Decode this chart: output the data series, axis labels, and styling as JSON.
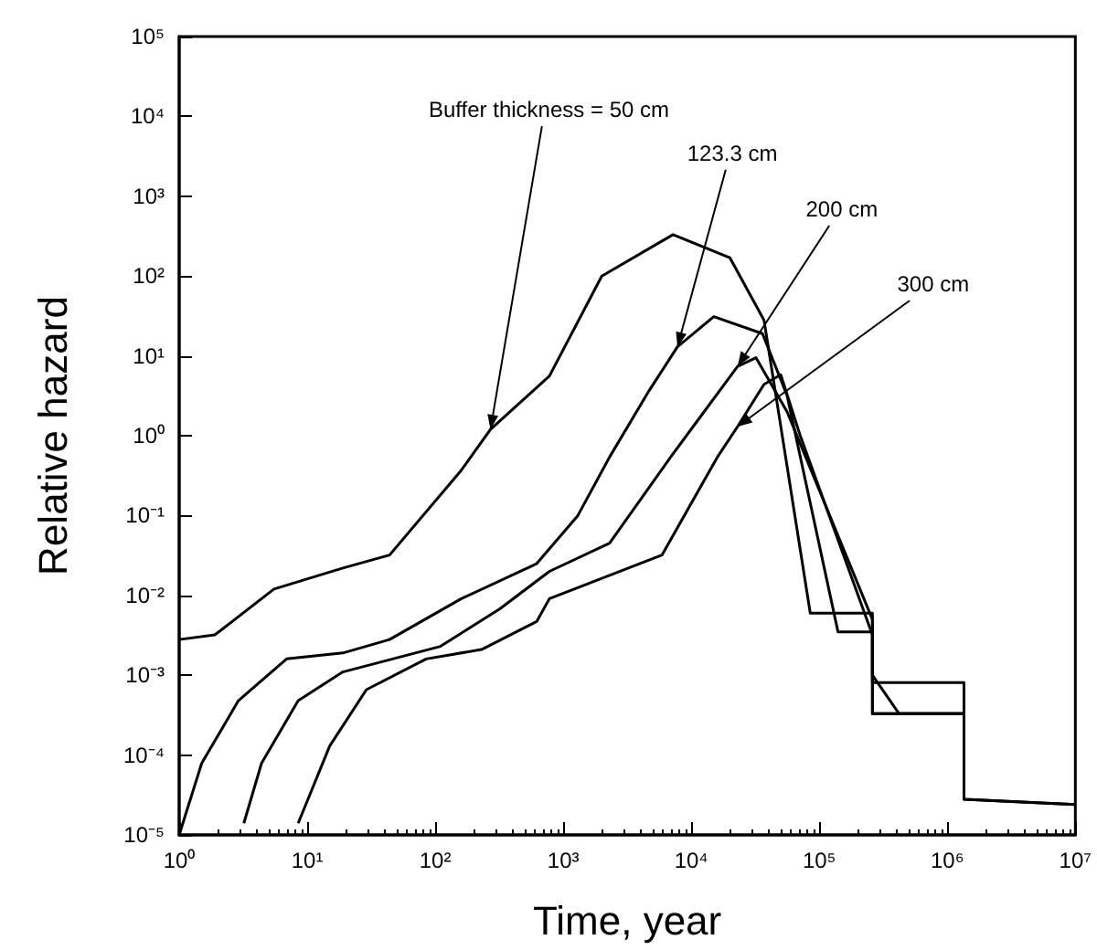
{
  "chart_data": {
    "type": "line",
    "xlabel": "Time, year",
    "ylabel": "Relative hazard",
    "log": "xy",
    "grid": false,
    "marker": "none",
    "line_style": "solid",
    "xlim": [
      1,
      10000000
    ],
    "ylim": [
      1e-05,
      100000
    ],
    "xticks": [
      {
        "value": 1,
        "label": "10⁰"
      },
      {
        "value": 10,
        "label": "10¹"
      },
      {
        "value": 100,
        "label": "10²"
      },
      {
        "value": 1000,
        "label": "10³"
      },
      {
        "value": 10000,
        "label": "10⁴"
      },
      {
        "value": 100000,
        "label": "10⁵"
      },
      {
        "value": 1000000,
        "label": "10⁶"
      },
      {
        "value": 10000000,
        "label": "10⁷"
      }
    ],
    "yticks": [
      {
        "value": 1e-05,
        "label": "10⁻⁵"
      },
      {
        "value": 0.0001,
        "label": "10⁻⁴"
      },
      {
        "value": 0.001,
        "label": "10⁻³"
      },
      {
        "value": 0.01,
        "label": "10⁻²"
      },
      {
        "value": 0.1,
        "label": "10⁻¹"
      },
      {
        "value": 1,
        "label": "10⁰"
      },
      {
        "value": 10,
        "label": "10¹"
      },
      {
        "value": 100,
        "label": "10²"
      },
      {
        "value": 1000,
        "label": "10³"
      },
      {
        "value": 10000,
        "label": "10⁴"
      },
      {
        "value": 100000,
        "label": "10⁵"
      }
    ],
    "series": [
      {
        "color": "#000000",
        "x": [
          1,
          1.9,
          5.5,
          19,
          44,
          160,
          270,
          780,
          2000,
          7200,
          20000,
          37000,
          85000,
          260000,
          260000,
          1350000,
          1350000,
          10000000
        ],
        "values": [
          0.0028,
          0.0032,
          0.012,
          0.022,
          0.032,
          0.37,
          1.2,
          5.6,
          100,
          330,
          170,
          28,
          0.006,
          0.006,
          0.00033,
          0.00033,
          2.8e-05,
          2.4e-05
        ]
      },
      {
        "color": "#000000",
        "x": [
          1,
          1.5,
          2.9,
          6.9,
          19,
          44,
          160,
          620,
          1300,
          2300,
          4700,
          7800,
          15000,
          36000,
          56000,
          140000,
          260000,
          260000,
          420000,
          1350000,
          1350000,
          10000000
        ],
        "values": [
          1e-05,
          7.9e-05,
          0.00048,
          0.0016,
          0.0019,
          0.0028,
          0.0091,
          0.025,
          0.1,
          0.54,
          3.7,
          13,
          31,
          19,
          3.2,
          0.0035,
          0.0035,
          0.001,
          0.00033,
          0.00033,
          2.8e-05,
          2.4e-05
        ]
      },
      {
        "color": "#000000",
        "x": [
          3.2,
          4.4,
          8.5,
          19,
          110,
          320,
          780,
          2300,
          6900,
          23000,
          32000,
          56000,
          260000,
          260000,
          1350000,
          1350000
        ],
        "values": [
          1.4e-05,
          7.9e-05,
          0.00048,
          0.0011,
          0.0023,
          0.0068,
          0.02,
          0.045,
          0.54,
          7.4,
          9.5,
          2,
          0.005,
          0.00081,
          0.00081,
          2.8e-05
        ]
      },
      {
        "color": "#000000",
        "x": [
          8.5,
          15,
          29,
          85,
          230,
          620,
          780,
          5900,
          16000,
          23000,
          37000,
          50000,
          71000,
          260000,
          260000,
          1350000,
          1350000
        ],
        "values": [
          1.4e-05,
          0.00013,
          0.00066,
          0.0016,
          0.0021,
          0.0047,
          0.0091,
          0.032,
          0.54,
          1.3,
          4.4,
          5.8,
          1,
          0.0032,
          0.00033,
          0.00033,
          2.8e-05
        ]
      }
    ],
    "annotations": [
      {
        "text": "Buffer thickness = 50 cm",
        "x": 270,
        "y": 1.2
      },
      {
        "text": "123.3 cm",
        "x": 7800,
        "y": 13
      },
      {
        "text": "200 cm",
        "x": 23000,
        "y": 7.4
      },
      {
        "text": "300 cm",
        "x": 23000,
        "y": 1.3
      }
    ]
  }
}
